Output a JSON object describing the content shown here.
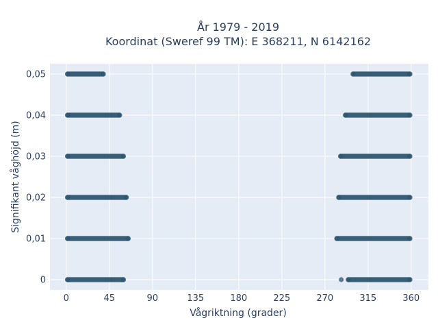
{
  "chart_data": {
    "type": "scatter",
    "title_lines": [
      "År 1979 - 2019",
      "Koordinat (Sweref 99 TM): E 368211, N 6142162"
    ],
    "xlabel": "Vågriktning (grader)",
    "ylabel": "Signifikant våghöjd (m)",
    "xlim": [
      -17,
      378
    ],
    "ylim": [
      -0.0025,
      0.0525
    ],
    "xticks": [
      0,
      45,
      90,
      135,
      180,
      225,
      270,
      315,
      360
    ],
    "xtick_labels": [
      "0",
      "45",
      "90",
      "135",
      "180",
      "225",
      "270",
      "315",
      "360"
    ],
    "yticks": [
      0,
      0.01,
      0.02,
      0.03,
      0.04,
      0.05
    ],
    "ytick_labels": [
      "0",
      "0,01",
      "0,02",
      "0,03",
      "0,04",
      "0,05"
    ],
    "grid": true,
    "legend": "none",
    "marker_color": "#2e5670",
    "series": [
      {
        "bands": [
          {
            "y": 0.05,
            "x_ranges": [
              [
                0,
                40
              ],
              [
                298,
                360
              ]
            ]
          },
          {
            "y": 0.04,
            "x_ranges": [
              [
                0,
                57
              ],
              [
                290,
                360
              ]
            ]
          },
          {
            "y": 0.03,
            "x_ranges": [
              [
                0,
                61
              ],
              [
                285,
                360
              ]
            ]
          },
          {
            "y": 0.02,
            "x_ranges": [
              [
                0,
                64
              ],
              [
                283,
                360
              ]
            ]
          },
          {
            "y": 0.01,
            "x_ranges": [
              [
                0,
                66
              ],
              [
                281,
                360
              ]
            ]
          },
          {
            "y": 0.0,
            "x_ranges": [
              [
                0,
                61
              ],
              [
                293,
                360
              ]
            ]
          }
        ],
        "isolated_points": [
          [
            287,
            0.0
          ]
        ]
      }
    ]
  }
}
